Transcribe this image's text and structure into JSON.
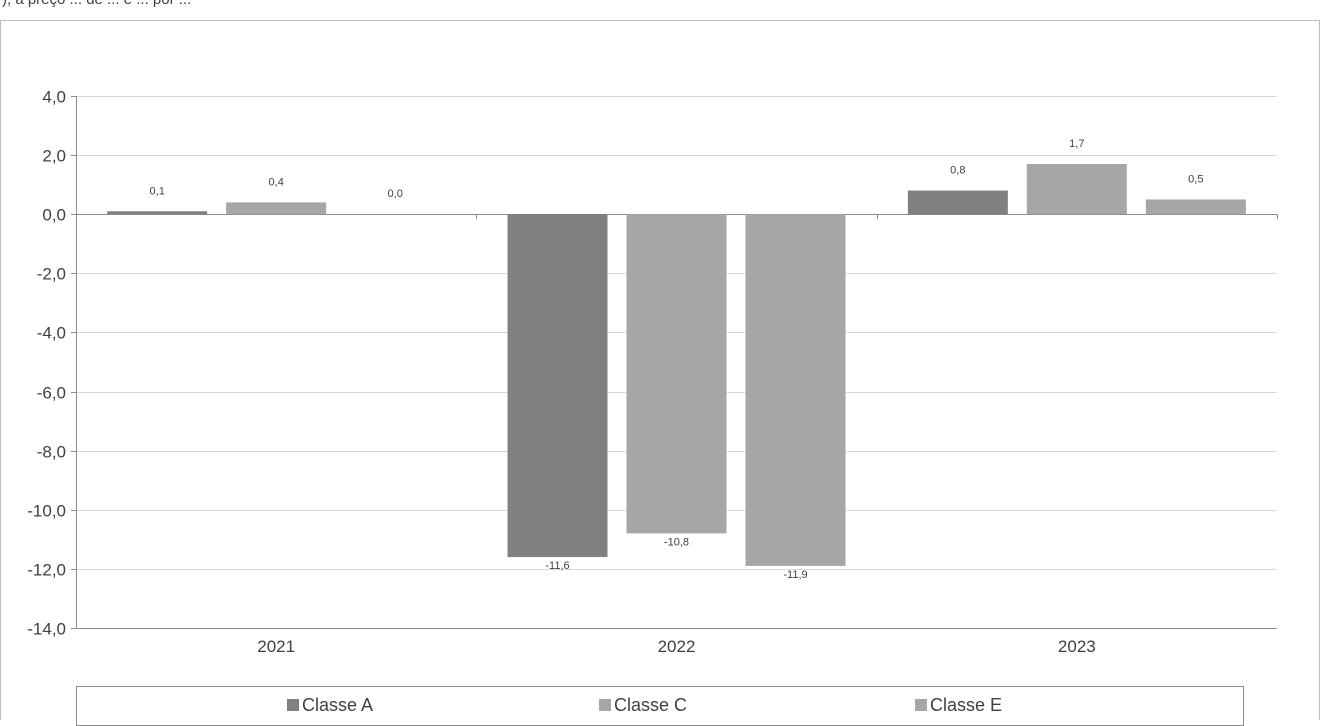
{
  "caption": "), a preço ... de ... e ... por ...",
  "chart_data": {
    "type": "bar",
    "categories": [
      "2021",
      "2022",
      "2023"
    ],
    "series": [
      {
        "name": "Classe A",
        "values": [
          0.1,
          -11.6,
          0.8
        ],
        "labels": [
          "0,1",
          "-11,6",
          "0,8"
        ],
        "color": "#808080"
      },
      {
        "name": "Classe C",
        "values": [
          0.4,
          -10.8,
          1.7
        ],
        "labels": [
          "0,4",
          "-10,8",
          "1,7"
        ],
        "color": "#a6a6a6"
      },
      {
        "name": "Classe E",
        "values": [
          0.0,
          -11.9,
          0.5
        ],
        "labels": [
          "0,0",
          "-11,9",
          "0,5"
        ],
        "color": "#a6a6a6"
      }
    ],
    "ylim": [
      -14,
      4
    ],
    "yticks": [
      4,
      2,
      0,
      -2,
      -4,
      -6,
      -8,
      -10,
      -12,
      -14
    ],
    "ytick_labels": [
      "4,0",
      "2,0",
      "0,0",
      "-2,0",
      "-4,0",
      "-6,0",
      "-8,0",
      "-10,0",
      "-12,0",
      "-14,0"
    ],
    "xlabel": "",
    "ylabel": "",
    "grid": true,
    "legend_position": "bottom"
  }
}
